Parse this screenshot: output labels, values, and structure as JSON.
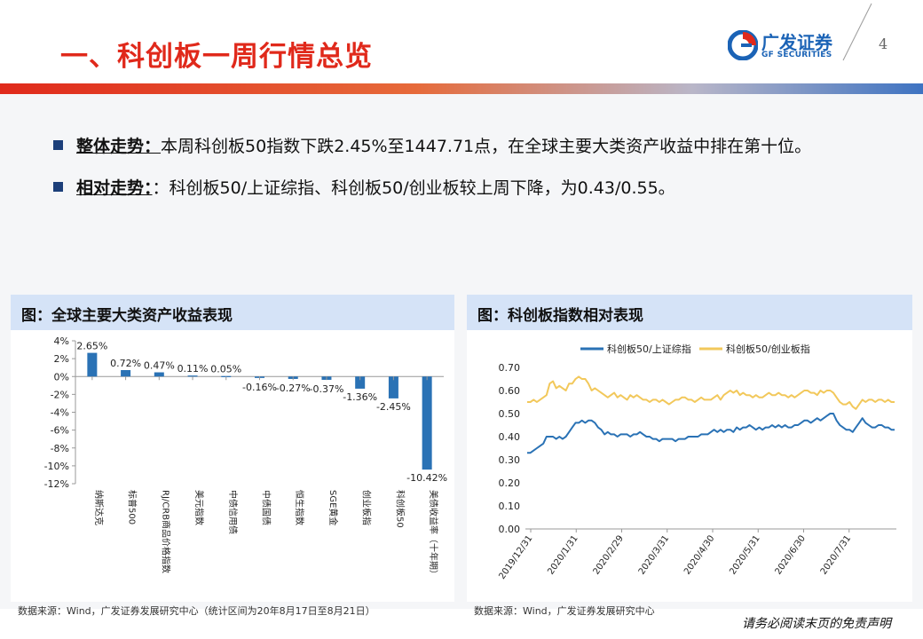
{
  "header": {
    "title": "一、科创板一周行情总览",
    "logo_cn": "广发证券",
    "logo_en": "GF SECURITIES",
    "page_number": "4"
  },
  "bullets": [
    {
      "key": "整体走势：",
      "text": "本周科创板50指数下跌2.45%至1447.71点，在全球主要大类资产收益中排在第十位。"
    },
    {
      "key": "相对走势：",
      "text": "：科创板50/上证综指、科创板50/创业板较上周下降，为0.43/0.55。"
    }
  ],
  "left_panel": {
    "title": "图：全球主要大类资产收益表现",
    "source": "数据来源：Wind，广发证券发展研究中心（统计区间为20年8月17日至8月21日）"
  },
  "right_panel": {
    "title": "图：科创板指数相对表现",
    "source": "数据来源：Wind，广发证券发展研究中心"
  },
  "footer": {
    "disclaimer": "请务必阅读末页的免责声明"
  },
  "colors": {
    "title_red": "#e0291b",
    "brand_blue": "#1b63b6",
    "bar_blue": "#2a72b5",
    "line_gold": "#f2c85b"
  },
  "chart_data": [
    {
      "type": "bar",
      "categories": [
        "纳斯达克",
        "标普500",
        "RJ/CRB商品价格指数",
        "美元指数",
        "中债信用债",
        "中债国债",
        "恒生指数",
        "SGE黄金",
        "创业板指",
        "科创板50",
        "美债收益率（十年期）"
      ],
      "values": [
        2.65,
        0.72,
        0.47,
        0.11,
        0.05,
        -0.16,
        -0.27,
        -0.37,
        -1.36,
        -2.45,
        -10.42
      ],
      "data_labels": [
        "2.65%",
        "0.72%",
        "0.47%",
        "0.11%",
        "0.05%",
        "-0.16%",
        "-0.27%",
        "-0.37%",
        "-1.36%",
        "-2.45%",
        "-10.42%"
      ],
      "y_ticks": [
        "4%",
        "2%",
        "0%",
        "-2%",
        "-4%",
        "-6%",
        "-8%",
        "-10%",
        "-12%"
      ],
      "ylim": [
        -12,
        4
      ],
      "unit": "%",
      "grid": false
    },
    {
      "type": "line",
      "x_ticks": [
        "2019/12/31",
        "2020/1/31",
        "2020/2/29",
        "2020/3/31",
        "2020/4/30",
        "2020/5/31",
        "2020/6/30",
        "2020/7/31"
      ],
      "y_ticks": [
        "0.00",
        "0.10",
        "0.20",
        "0.30",
        "0.40",
        "0.50",
        "0.60",
        "0.70"
      ],
      "ylim": [
        0,
        0.7
      ],
      "legend_position": "top",
      "grid": false,
      "series": [
        {
          "name": "科创板50/上证综指",
          "color": "#2a72b5",
          "values": [
            0.33,
            0.33,
            0.34,
            0.35,
            0.36,
            0.37,
            0.4,
            0.4,
            0.4,
            0.39,
            0.4,
            0.39,
            0.4,
            0.42,
            0.44,
            0.46,
            0.46,
            0.47,
            0.46,
            0.47,
            0.47,
            0.46,
            0.44,
            0.43,
            0.41,
            0.42,
            0.41,
            0.41,
            0.4,
            0.41,
            0.41,
            0.41,
            0.4,
            0.41,
            0.41,
            0.42,
            0.41,
            0.4,
            0.4,
            0.39,
            0.39,
            0.38,
            0.39,
            0.39,
            0.39,
            0.39,
            0.38,
            0.39,
            0.39,
            0.39,
            0.4,
            0.4,
            0.4,
            0.4,
            0.41,
            0.41,
            0.41,
            0.42,
            0.43,
            0.42,
            0.43,
            0.42,
            0.43,
            0.43,
            0.42,
            0.44,
            0.43,
            0.44,
            0.44,
            0.45,
            0.44,
            0.43,
            0.44,
            0.43,
            0.44,
            0.44,
            0.45,
            0.44,
            0.45,
            0.44,
            0.45,
            0.44,
            0.44,
            0.45,
            0.45,
            0.46,
            0.47,
            0.47,
            0.46,
            0.47,
            0.48,
            0.47,
            0.48,
            0.49,
            0.5,
            0.5,
            0.47,
            0.45,
            0.44,
            0.43,
            0.43,
            0.42,
            0.44,
            0.46,
            0.48,
            0.46,
            0.45,
            0.44,
            0.44,
            0.45,
            0.45,
            0.44,
            0.44,
            0.43,
            0.43
          ]
        },
        {
          "name": "科创板50/创业板指",
          "color": "#f2c85b",
          "values": [
            0.55,
            0.55,
            0.56,
            0.55,
            0.56,
            0.57,
            0.58,
            0.63,
            0.64,
            0.61,
            0.62,
            0.61,
            0.6,
            0.63,
            0.63,
            0.65,
            0.66,
            0.65,
            0.65,
            0.63,
            0.6,
            0.61,
            0.6,
            0.59,
            0.58,
            0.57,
            0.58,
            0.59,
            0.57,
            0.58,
            0.57,
            0.56,
            0.58,
            0.57,
            0.58,
            0.57,
            0.56,
            0.56,
            0.55,
            0.56,
            0.56,
            0.55,
            0.56,
            0.55,
            0.54,
            0.55,
            0.56,
            0.56,
            0.57,
            0.57,
            0.56,
            0.56,
            0.55,
            0.56,
            0.57,
            0.56,
            0.56,
            0.56,
            0.57,
            0.58,
            0.56,
            0.58,
            0.59,
            0.6,
            0.59,
            0.6,
            0.58,
            0.59,
            0.58,
            0.58,
            0.57,
            0.58,
            0.57,
            0.57,
            0.58,
            0.59,
            0.58,
            0.58,
            0.59,
            0.58,
            0.58,
            0.57,
            0.58,
            0.57,
            0.58,
            0.59,
            0.6,
            0.6,
            0.59,
            0.59,
            0.58,
            0.6,
            0.59,
            0.6,
            0.6,
            0.59,
            0.57,
            0.55,
            0.54,
            0.54,
            0.55,
            0.53,
            0.52,
            0.54,
            0.56,
            0.55,
            0.56,
            0.56,
            0.55,
            0.56,
            0.56,
            0.55,
            0.56,
            0.55,
            0.55
          ]
        }
      ]
    }
  ]
}
